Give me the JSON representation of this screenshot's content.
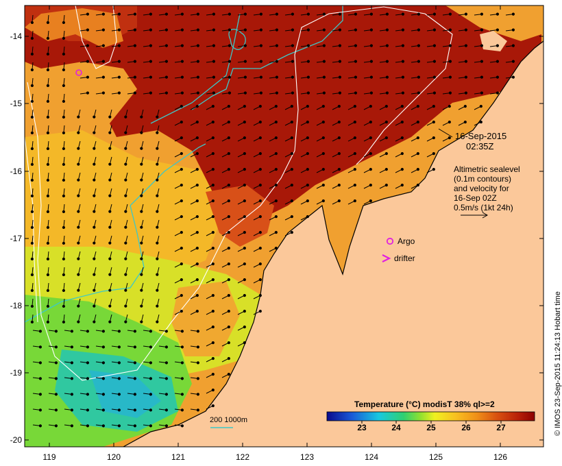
{
  "map": {
    "timestamp_date": "16-Sep-2015",
    "timestamp_time": "02:35Z",
    "legend_lines": [
      "Altimetric sealevel",
      "(0.1m contours)",
      "and velocity for",
      "16-Sep 02Z",
      "0.5m/s (1kt 24h)"
    ],
    "markers": {
      "argo_label": "Argo",
      "drifter_label": "drifter"
    },
    "scale_label": "200  1000m",
    "credit": "© IMOS 23-Sep-2015 11:24:13 Hobart time",
    "colorbar": {
      "title": "Temperature (°C) modisT 38% ql>=2",
      "ticks": [
        "23",
        "24",
        "25",
        "26",
        "27"
      ]
    },
    "lat_labels": [
      "-14",
      "-15",
      "-16",
      "-17",
      "-18",
      "-19",
      "-20"
    ],
    "lon_labels": [
      "119",
      "120",
      "121",
      "122",
      "123",
      "124",
      "125",
      "126"
    ],
    "colors": {
      "land": "#fbc89a",
      "shelf_contour": "#3cc8c8",
      "sealevel_contour": "#ffffff",
      "marker": "#e020e0"
    }
  }
}
